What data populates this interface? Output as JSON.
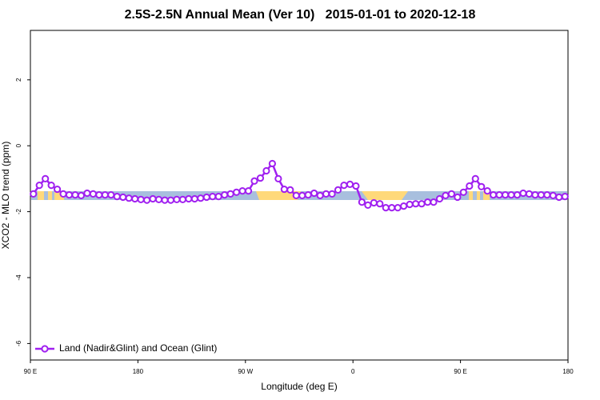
{
  "chart_data": {
    "type": "line",
    "title": "2.5S-2.5N Annual Mean (Ver 10)   2015-01-01 to 2020-12-18",
    "x_label": "Longitude (deg E)",
    "y_label": "XCO2 - MLO trend (ppm)",
    "x": [
      92.5,
      97.5,
      102.5,
      107.5,
      112.5,
      117.5,
      122.5,
      127.5,
      132.5,
      137.5,
      142.5,
      147.5,
      152.5,
      157.5,
      162.5,
      167.5,
      172.5,
      177.5,
      182.5,
      187.5,
      192.5,
      197.5,
      202.5,
      207.5,
      212.5,
      217.5,
      222.5,
      227.5,
      232.5,
      237.5,
      242.5,
      247.5,
      252.5,
      257.5,
      262.5,
      267.5,
      272.5,
      277.5,
      282.5,
      287.5,
      292.5,
      297.5,
      302.5,
      307.5,
      312.5,
      317.5,
      322.5,
      327.5,
      332.5,
      337.5,
      342.5,
      347.5,
      352.5,
      357.5,
      362.5,
      367.5,
      372.5,
      377.5,
      382.5,
      387.5,
      392.5,
      397.5,
      402.5,
      407.5,
      412.5,
      417.5,
      422.5,
      427.5,
      432.5,
      437.5,
      442.5,
      447.5,
      452.5,
      457.5,
      462.5,
      467.5,
      472.5,
      477.5,
      482.5,
      487.5,
      492.5,
      497.5,
      502.5,
      507.5,
      512.5,
      517.5,
      522.5,
      527.5,
      532.5,
      537.5
    ],
    "series": [
      {
        "name": "Land (Nadir&Glint) and Ocean (Glint)",
        "color": "#a020f0",
        "values": [
          -1.46,
          -1.2,
          -1.0,
          -1.2,
          -1.32,
          -1.46,
          -1.49,
          -1.49,
          -1.51,
          -1.44,
          -1.46,
          -1.49,
          -1.49,
          -1.49,
          -1.54,
          -1.56,
          -1.59,
          -1.61,
          -1.63,
          -1.65,
          -1.61,
          -1.63,
          -1.65,
          -1.65,
          -1.63,
          -1.63,
          -1.61,
          -1.61,
          -1.59,
          -1.56,
          -1.54,
          -1.54,
          -1.49,
          -1.46,
          -1.41,
          -1.37,
          -1.37,
          -1.07,
          -0.98,
          -0.76,
          -0.54,
          -1.0,
          -1.32,
          -1.34,
          -1.51,
          -1.51,
          -1.49,
          -1.44,
          -1.51,
          -1.46,
          -1.46,
          -1.34,
          -1.2,
          -1.17,
          -1.22,
          -1.71,
          -1.8,
          -1.73,
          -1.76,
          -1.88,
          -1.88,
          -1.88,
          -1.83,
          -1.78,
          -1.76,
          -1.76,
          -1.71,
          -1.71,
          -1.61,
          -1.51,
          -1.46,
          -1.56,
          -1.41,
          -1.22,
          -1.0,
          -1.24,
          -1.37,
          -1.49,
          -1.49,
          -1.49,
          -1.49,
          -1.49,
          -1.44,
          -1.46,
          -1.49,
          -1.49,
          -1.49,
          -1.51,
          -1.56,
          -1.54
        ]
      }
    ],
    "xlim": [
      90,
      540
    ],
    "xticks": [
      {
        "value": 90,
        "label": "90 E"
      },
      180,
      {
        "value": 270,
        "label": "90 W"
      },
      {
        "value": 360,
        "label": "0"
      },
      {
        "value": 450,
        "label": "90 E"
      },
      {
        "value": 540,
        "label": "180"
      }
    ],
    "ylim": [
      -6.5,
      3.5
    ],
    "yticks": [
      -6,
      -4,
      -2,
      0,
      2
    ],
    "legend": "bottom-left"
  }
}
